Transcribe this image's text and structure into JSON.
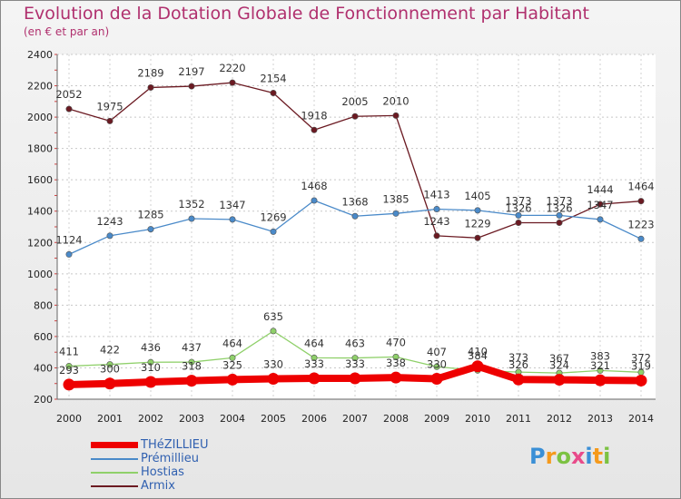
{
  "chart_data": {
    "type": "line",
    "title": "Evolution de la Dotation Globale de Fonctionnement par Habitant",
    "subtitle": "(en € et par an)",
    "xlabel": "",
    "ylabel": "",
    "ylim": [
      200,
      2400
    ],
    "yticks": [
      200,
      400,
      600,
      800,
      1000,
      1200,
      1400,
      1600,
      1800,
      2000,
      2200,
      2400
    ],
    "categories": [
      "2000",
      "2001",
      "2002",
      "2003",
      "2004",
      "2005",
      "2006",
      "2007",
      "2008",
      "2009",
      "2010",
      "2011",
      "2012",
      "2013",
      "2014"
    ],
    "series": [
      {
        "name": "THéZILLIEU",
        "color": "#ee0000",
        "values": [
          293,
          300,
          310,
          318,
          325,
          330,
          333,
          333,
          338,
          330,
          410,
          326,
          324,
          321,
          319
        ],
        "labels": [
          "293",
          "300",
          "310",
          "318",
          "325",
          "330",
          "333",
          "333",
          "338",
          "330",
          "410",
          "326",
          "324",
          "321",
          "319"
        ]
      },
      {
        "name": "Prémillieu",
        "color": "#4a8ac9",
        "values": [
          1124,
          1243,
          1285,
          1352,
          1347,
          1269,
          1468,
          1368,
          1385,
          1413,
          1405,
          1373,
          1373,
          1347,
          1223
        ],
        "labels": [
          "1124",
          "1243",
          "1285",
          "1352",
          "1347",
          "1269",
          "1468",
          "1368",
          "1385",
          "1413",
          "1405",
          "1373",
          "1373",
          "1347",
          "1223"
        ]
      },
      {
        "name": "Hostias",
        "color": "#8fd06a",
        "values": [
          411,
          422,
          436,
          437,
          464,
          635,
          464,
          463,
          470,
          407,
          384,
          373,
          367,
          383,
          372
        ],
        "labels": [
          "411",
          "422",
          "436",
          "437",
          "464",
          "635",
          "464",
          "463",
          "470",
          "407",
          "384",
          "373",
          "367",
          "383",
          "372"
        ]
      },
      {
        "name": "Armix",
        "color": "#6b1a22",
        "values": [
          2052,
          1975,
          2189,
          2197,
          2220,
          2154,
          1918,
          2005,
          2010,
          1243,
          1229,
          1326,
          1326,
          1444,
          1464
        ],
        "labels": [
          "2052",
          "1975",
          "2189",
          "2197",
          "2220",
          "2154",
          "1918",
          "2005",
          "2010",
          "1243",
          "1229",
          "1326",
          "1326",
          "1444",
          "1464"
        ]
      }
    ]
  },
  "logo": {
    "p": "P",
    "r": "r",
    "o": "o",
    "x": "x",
    "i": "i",
    "t": "t",
    "i2": "i"
  }
}
